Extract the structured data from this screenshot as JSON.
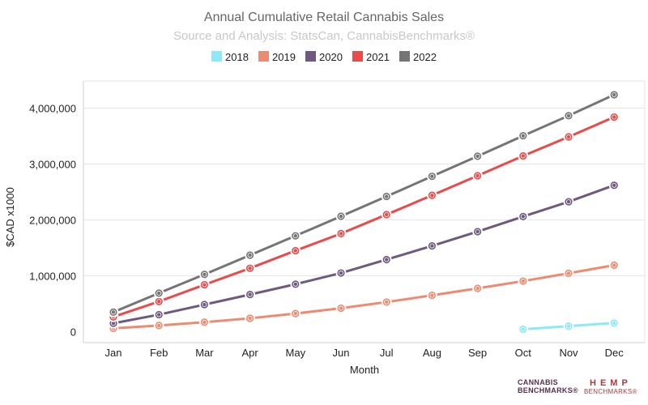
{
  "chart_data": {
    "type": "line",
    "title": "Annual Cumulative Retail Cannabis Sales",
    "subtitle": "Source and Analysis: StatsCan, CannabisBenchmarks®",
    "xlabel": "Month",
    "ylabel": "$CAD x1000",
    "categories": [
      "Jan",
      "Feb",
      "Mar",
      "Apr",
      "May",
      "Jun",
      "Jul",
      "Aug",
      "Sep",
      "Oct",
      "Nov",
      "Dec"
    ],
    "ylim": [
      0,
      4400000
    ],
    "yticks": [
      0,
      1000000,
      2000000,
      3000000,
      4000000
    ],
    "ytick_labels": [
      "0",
      "1,000,000",
      "2,000,000",
      "3,000,000",
      "4,000,000"
    ],
    "grid": true,
    "legend_position": "top-center",
    "series": [
      {
        "name": "2018",
        "color": "#8ee8f7",
        "values": [
          null,
          null,
          null,
          null,
          null,
          null,
          null,
          null,
          null,
          43000,
          100000,
          155000
        ]
      },
      {
        "name": "2019",
        "color": "#ee8a70",
        "values": [
          60000,
          110000,
          170000,
          240000,
          325000,
          420000,
          530000,
          650000,
          775000,
          905000,
          1045000,
          1190000
        ]
      },
      {
        "name": "2020",
        "color": "#6e5a7e",
        "values": [
          150000,
          305000,
          485000,
          665000,
          850000,
          1050000,
          1290000,
          1535000,
          1790000,
          2060000,
          2325000,
          2620000
        ]
      },
      {
        "name": "2021",
        "color": "#e94a4a",
        "values": [
          265000,
          540000,
          840000,
          1135000,
          1450000,
          1755000,
          2095000,
          2440000,
          2790000,
          3145000,
          3485000,
          3840000
        ]
      },
      {
        "name": "2022",
        "color": "#757575",
        "values": [
          350000,
          690000,
          1025000,
          1370000,
          1715000,
          2065000,
          2420000,
          2780000,
          3140000,
          3505000,
          3865000,
          4240000
        ]
      }
    ]
  },
  "logos": {
    "cannabis_benchmarks": [
      "CANNABIS",
      "BENCHMARKS®"
    ],
    "hemp_benchmarks": [
      "HEMP",
      "BENCHMARKS®"
    ]
  }
}
